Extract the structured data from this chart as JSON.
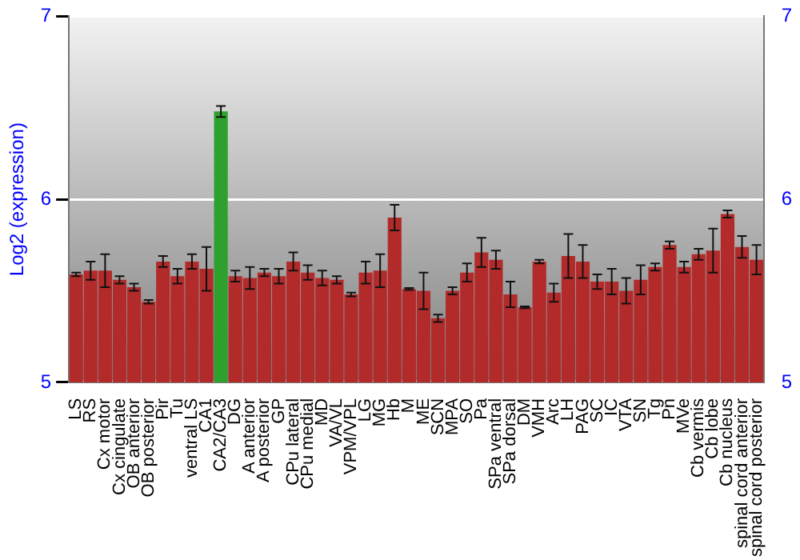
{
  "chart_data": {
    "type": "bar",
    "ylabel": "Log2 (expression)",
    "categories": [
      "LS",
      "RS",
      "Cx motor",
      "Cx cingulate",
      "OB anterior",
      "OB posterior",
      "Pir",
      "Tu",
      "ventral LS",
      "CA1",
      "CA2/CA3",
      "DG",
      "A anterior",
      "A posterior",
      "GP",
      "CPu lateral",
      "CPu medial",
      "MD",
      "VA/VL",
      "VPM/VPL",
      "LG",
      "MG",
      "Hb",
      "M",
      "ME",
      "SCN",
      "MPA",
      "SO",
      "Pa",
      "SPa ventral",
      "SPa dorsal",
      "DM",
      "VMH",
      "Arc",
      "LH",
      "PAG",
      "SC",
      "IC",
      "VTA",
      "SN",
      "Tg",
      "Pn",
      "MVe",
      "Cb vermis",
      "Cb lobe",
      "Cb nucleus",
      "spinal cord anterior",
      "spinal cord posterior"
    ],
    "values": [
      5.59,
      5.61,
      5.61,
      5.56,
      5.52,
      5.44,
      5.66,
      5.58,
      5.66,
      5.62,
      6.48,
      5.58,
      5.57,
      5.6,
      5.58,
      5.66,
      5.6,
      5.57,
      5.56,
      5.48,
      5.6,
      5.61,
      5.9,
      5.51,
      5.5,
      5.35,
      5.5,
      5.6,
      5.71,
      5.67,
      5.48,
      5.41,
      5.66,
      5.49,
      5.69,
      5.66,
      5.55,
      5.55,
      5.5,
      5.56,
      5.63,
      5.75,
      5.63,
      5.7,
      5.72,
      5.92,
      5.74,
      5.67
    ],
    "errors": [
      0.01,
      0.05,
      0.09,
      0.02,
      0.02,
      0.01,
      0.03,
      0.04,
      0.04,
      0.12,
      0.03,
      0.03,
      0.06,
      0.02,
      0.04,
      0.05,
      0.04,
      0.04,
      0.02,
      0.01,
      0.06,
      0.09,
      0.07,
      0.005,
      0.1,
      0.02,
      0.02,
      0.05,
      0.08,
      0.05,
      0.07,
      0.005,
      0.01,
      0.05,
      0.12,
      0.09,
      0.04,
      0.07,
      0.07,
      0.08,
      0.02,
      0.02,
      0.03,
      0.03,
      0.12,
      0.02,
      0.06,
      0.08
    ],
    "colors": [
      "#b22a2a",
      "#b22a2a",
      "#b22a2a",
      "#b22a2a",
      "#b22a2a",
      "#b22a2a",
      "#b22a2a",
      "#b22a2a",
      "#b22a2a",
      "#b22a2a",
      "#2ea02e",
      "#b22a2a",
      "#b22a2a",
      "#b22a2a",
      "#b22a2a",
      "#b22a2a",
      "#b22a2a",
      "#b22a2a",
      "#b22a2a",
      "#b22a2a",
      "#b22a2a",
      "#b22a2a",
      "#b22a2a",
      "#b22a2a",
      "#b22a2a",
      "#b22a2a",
      "#b22a2a",
      "#b22a2a",
      "#b22a2a",
      "#b22a2a",
      "#b22a2a",
      "#b22a2a",
      "#b22a2a",
      "#b22a2a",
      "#b22a2a",
      "#b22a2a",
      "#b22a2a",
      "#b22a2a",
      "#b22a2a",
      "#b22a2a",
      "#b22a2a",
      "#b22a2a",
      "#b22a2a",
      "#b22a2a",
      "#b22a2a",
      "#b22a2a",
      "#b22a2a",
      "#b22a2a"
    ],
    "ylim": [
      5,
      7
    ],
    "yticks": [
      5,
      6,
      7
    ],
    "y2lim": [
      5,
      7
    ],
    "y2ticks": [
      5,
      6,
      7
    ],
    "grid": "y",
    "legend": false
  }
}
